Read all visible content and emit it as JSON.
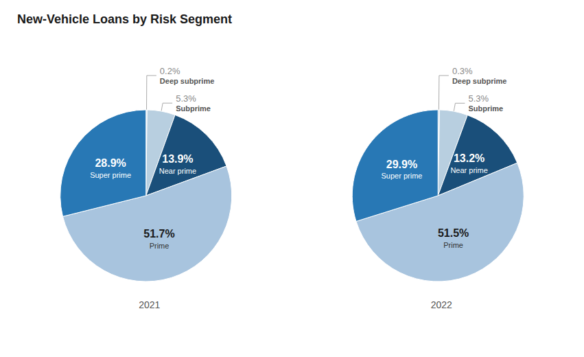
{
  "chart_data": {
    "type": "pie",
    "title": "New-Vehicle Loans by Risk Segment",
    "categories": [
      "Deep subprime",
      "Subprime",
      "Near prime",
      "Prime",
      "Super prime"
    ],
    "colors": [
      "#c8daea",
      "#b8cfe0",
      "#1a4f7a",
      "#a8c4de",
      "#2878b5"
    ],
    "series": [
      {
        "name": "2021",
        "values": [
          0.2,
          5.3,
          13.9,
          51.7,
          28.9
        ],
        "value_labels": [
          "0.2%",
          "5.3%",
          "13.9%",
          "51.7%",
          "28.9%"
        ]
      },
      {
        "name": "2022",
        "values": [
          0.3,
          5.3,
          13.2,
          51.5,
          29.9
        ],
        "value_labels": [
          "0.3%",
          "5.3%",
          "13.2%",
          "51.5%",
          "29.9%"
        ]
      }
    ],
    "data_labels": true
  }
}
